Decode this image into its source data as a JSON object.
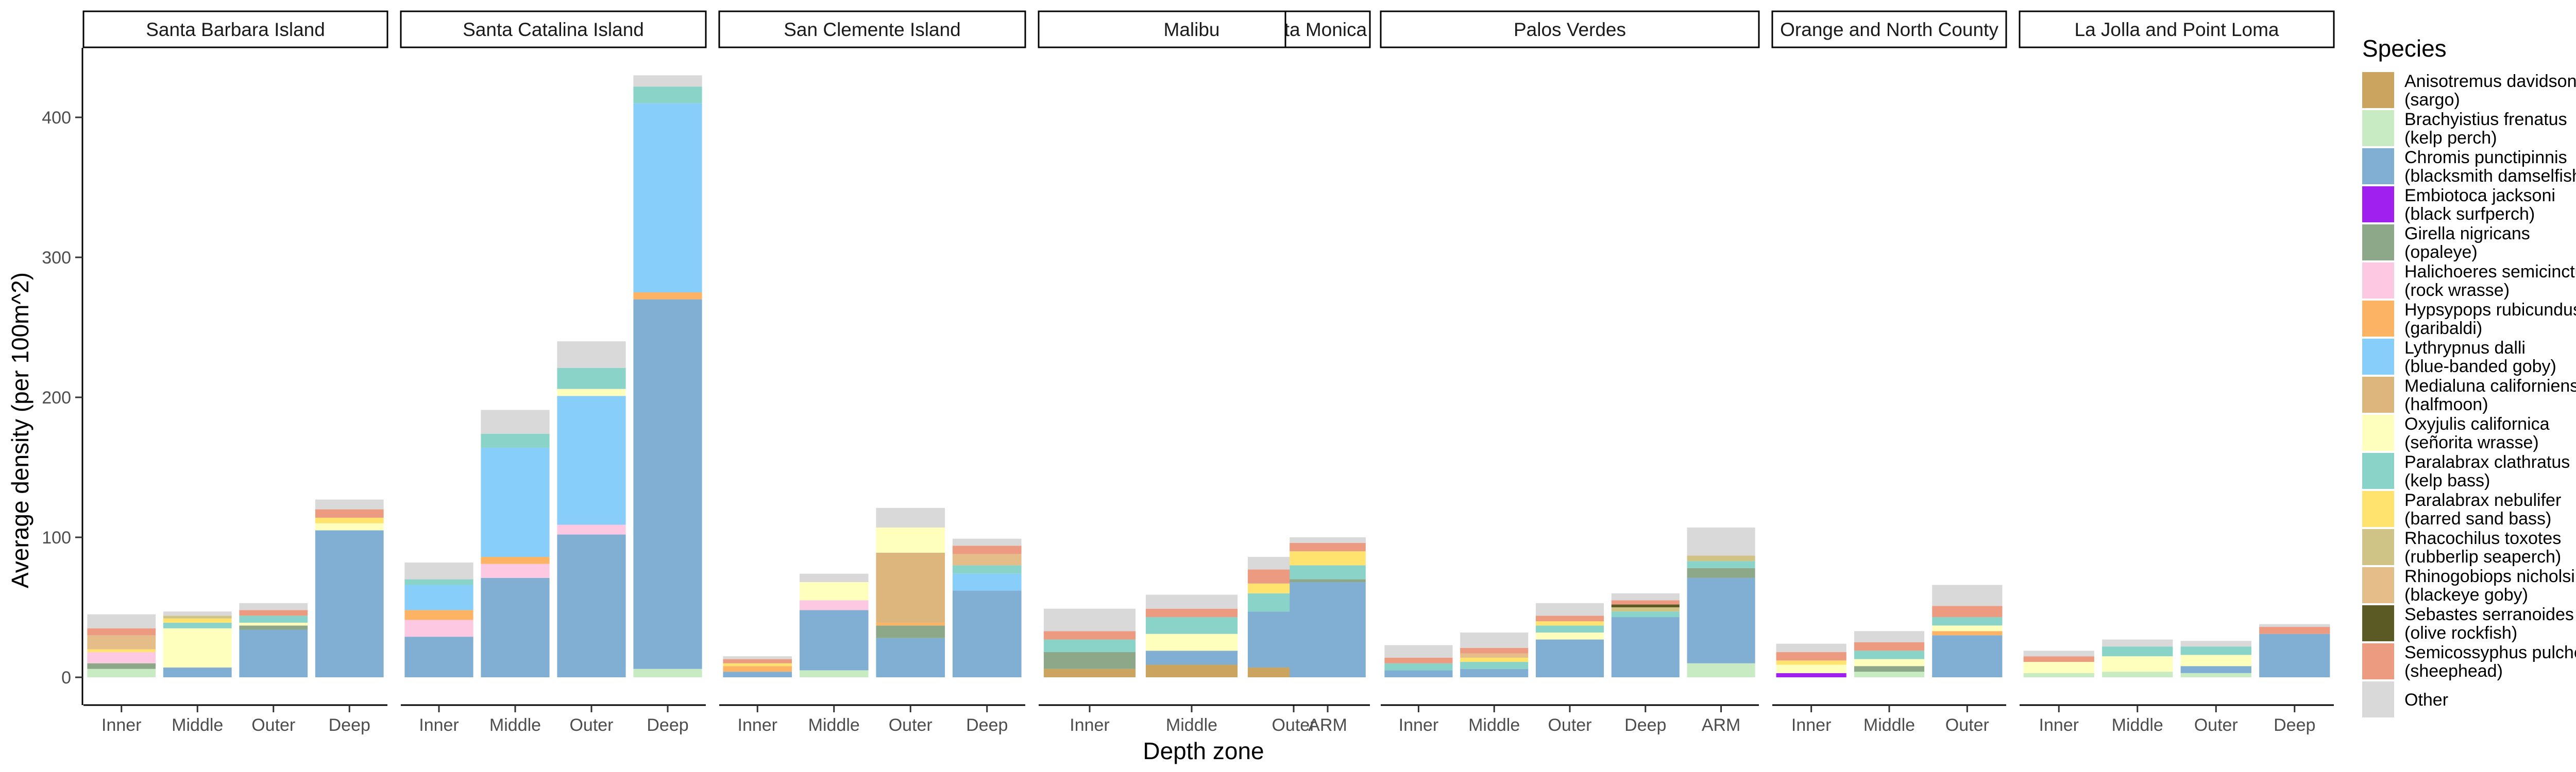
{
  "chart_data": {
    "type": "bar",
    "stacked": true,
    "faceted": true,
    "title": "",
    "xlabel": "Depth zone",
    "ylabel": "Average density (per 100m^2)",
    "ylim": [
      0,
      440
    ],
    "y_ticks": [
      0,
      100,
      200,
      300,
      400
    ],
    "grid": false,
    "legend_position": "right",
    "legend": {
      "title": "Species",
      "items": [
        {
          "key": "sargo",
          "line1": "Anisotremus davidsonii",
          "line2": "(sargo)",
          "color": "#CBA45F"
        },
        {
          "key": "kelpperch",
          "line1": "Brachyistius frenatus",
          "line2": "(kelp perch)",
          "color": "#C8EBC3"
        },
        {
          "key": "blacksmith",
          "line1": "Chromis punctipinnis",
          "line2": "(blacksmith damselfish)",
          "color": "#80AFD3"
        },
        {
          "key": "blacksurf",
          "line1": "Embiotoca jacksoni",
          "line2": "(black surfperch)",
          "color": "#A020F0"
        },
        {
          "key": "opaleye",
          "line1": "Girella nigricans",
          "line2": "(opaleye)",
          "color": "#8DA789"
        },
        {
          "key": "rockwrasse",
          "line1": "Halichoeres semicinctus",
          "line2": "(rock wrasse)",
          "color": "#FCC8E2"
        },
        {
          "key": "garibaldi",
          "line1": "Hypsypops rubicundus",
          "line2": "(garibaldi)",
          "color": "#FDB364"
        },
        {
          "key": "goby",
          "line1": "Lythrypnus dalli",
          "line2": "(blue-banded goby)",
          "color": "#87CEFA"
        },
        {
          "key": "halfmoon",
          "line1": "Medialuna californiensis",
          "line2": "(halfmoon)",
          "color": "#DDB67E"
        },
        {
          "key": "senorita",
          "line1": "Oxyjulis californica",
          "line2": "(señorita wrasse)",
          "color": "#FFFFBD"
        },
        {
          "key": "kelpbass",
          "line1": "Paralabrax clathratus",
          "line2": "(kelp bass)",
          "color": "#8AD3C8"
        },
        {
          "key": "sandbass",
          "line1": "Paralabrax nebulifer",
          "line2": "(barred sand bass)",
          "color": "#FFE36E"
        },
        {
          "key": "seaperch",
          "line1": "Rhacochilus toxotes",
          "line2": "(rubberlip seaperch)",
          "color": "#CFC386"
        },
        {
          "key": "blackeye",
          "line1": "Rhinogobiops nicholsii",
          "line2": "(blackeye goby)",
          "color": "#E4BD89"
        },
        {
          "key": "olive",
          "line1": "Sebastes serranoides",
          "line2": "(olive rockfish)",
          "color": "#5B5924"
        },
        {
          "key": "sheephead",
          "line1": "Semicossyphus pulcher",
          "line2": "(sheephead)",
          "color": "#EC9A80"
        },
        {
          "key": "other",
          "line1": "Other",
          "line2": "",
          "color": "#D9D9D9"
        }
      ]
    },
    "facets": [
      {
        "name": "Santa Barbara Island",
        "bars": [
          {
            "x": "Inner",
            "stack": {
              "other": 10,
              "sheephead": 5,
              "blackeye": 10,
              "rockwrasse": 8,
              "opaleye": 4,
              "sandbass": 2,
              "kelpperch": 6
            }
          },
          {
            "x": "Middle",
            "stack": {
              "other": 3,
              "kelpbass": 4,
              "senorita": 28,
              "sandbass": 3,
              "seaperch": 2,
              "blacksmith": 7
            }
          },
          {
            "x": "Outer",
            "stack": {
              "other": 5,
              "sheephead": 4,
              "kelpbass": 5,
              "opaleye": 3,
              "senorita": 2,
              "blacksmith": 34
            }
          },
          {
            "x": "Deep",
            "stack": {
              "other": 7,
              "sheephead": 6,
              "sandbass": 4,
              "senorita": 5,
              "blacksmith": 105
            }
          }
        ]
      },
      {
        "name": "Santa Catalina Island",
        "bars": [
          {
            "x": "Inner",
            "stack": {
              "other": 12,
              "kelpbass": 4,
              "goby": 18,
              "garibaldi": 7,
              "rockwrasse": 12,
              "blacksmith": 29
            }
          },
          {
            "x": "Middle",
            "stack": {
              "other": 17,
              "kelpbass": 10,
              "goby": 78,
              "garibaldi": 5,
              "rockwrasse": 10,
              "blacksmith": 71
            }
          },
          {
            "x": "Outer",
            "stack": {
              "other": 19,
              "kelpbass": 15,
              "senorita": 5,
              "goby": 92,
              "rockwrasse": 7,
              "blacksmith": 102
            }
          },
          {
            "x": "Deep",
            "stack": {
              "other": 8,
              "kelpbass": 12,
              "garibaldi": 5,
              "goby": 135,
              "blacksmith": 264,
              "kelpperch": 6
            }
          }
        ]
      },
      {
        "name": "San Clemente Island",
        "bars": [
          {
            "x": "Inner",
            "stack": {
              "other": 2,
              "sheephead": 3,
              "garibaldi": 4,
              "sandbass": 2,
              "blacksmith": 4
            }
          },
          {
            "x": "Middle",
            "stack": {
              "other": 6,
              "senorita": 13,
              "rockwrasse": 7,
              "blacksmith": 43,
              "kelpperch": 5
            }
          },
          {
            "x": "Outer",
            "stack": {
              "other": 14,
              "senorita": 18,
              "halfmoon": 50,
              "garibaldi": 2,
              "opaleye": 9,
              "blacksmith": 28
            }
          },
          {
            "x": "Deep",
            "stack": {
              "other": 5,
              "sheephead": 6,
              "kelpbass": 6,
              "blackeye": 8,
              "goby": 12,
              "blacksmith": 62
            }
          }
        ]
      },
      {
        "name": "Malibu",
        "bars": [
          {
            "x": "Inner",
            "stack": {
              "other": 16,
              "sheephead": 6,
              "kelpbass": 9,
              "opaleye": 12,
              "sargo": 6
            }
          },
          {
            "x": "Middle",
            "stack": {
              "other": 10,
              "sheephead": 6,
              "kelpbass": 12,
              "senorita": 12,
              "blacksmith": 10,
              "sargo": 9
            }
          },
          {
            "x": "Outer",
            "stack": {
              "other": 9,
              "sheephead": 10,
              "sandbass": 7,
              "kelpbass": 13,
              "blacksmith": 40,
              "sargo": 7
            }
          }
        ]
      },
      {
        "name": "Santa Monica Bay",
        "bars": [
          {
            "x": "ARM",
            "stack": {
              "other": 4,
              "sheephead": 6,
              "sandbass": 10,
              "kelpbass": 10,
              "opaleye": 2,
              "blacksmith": 68
            }
          }
        ]
      },
      {
        "name": "Palos Verdes",
        "bars": [
          {
            "x": "Inner",
            "stack": {
              "other": 9,
              "sheephead": 4,
              "kelpbass": 5,
              "blacksmith": 5
            }
          },
          {
            "x": "Middle",
            "stack": {
              "other": 11,
              "sheephead": 4,
              "kelpbass": 5,
              "sandbass": 3,
              "blackeye": 3,
              "blacksmith": 6
            }
          },
          {
            "x": "Outer",
            "stack": {
              "other": 9,
              "sheephead": 4,
              "kelpbass": 5,
              "senorita": 5,
              "sandbass": 3,
              "blacksmith": 27
            }
          },
          {
            "x": "Deep",
            "stack": {
              "other": 5,
              "sheephead": 3,
              "olive": 2,
              "seaperch": 3,
              "kelpbass": 4,
              "blacksmith": 43
            }
          },
          {
            "x": "ARM",
            "stack": {
              "other": 20,
              "kelpbass": 5,
              "seaperch": 4,
              "opaleye": 7,
              "blacksmith": 61,
              "kelpperch": 10
            }
          }
        ]
      },
      {
        "name": "Orange and North County",
        "bars": [
          {
            "x": "Inner",
            "stack": {
              "other": 6,
              "senorita": 6,
              "sheephead": 6,
              "sandbass": 3,
              "blacksurf": 3
            }
          },
          {
            "x": "Middle",
            "stack": {
              "other": 8,
              "sheephead": 6,
              "kelpbass": 6,
              "senorita": 5,
              "opaleye": 4,
              "kelpperch": 4
            }
          },
          {
            "x": "Outer",
            "stack": {
              "other": 15,
              "sheephead": 8,
              "kelpbass": 6,
              "senorita": 4,
              "garibaldi": 3,
              "blacksmith": 30
            }
          }
        ]
      },
      {
        "name": "La Jolla and Point Loma",
        "bars": [
          {
            "x": "Inner",
            "stack": {
              "other": 4,
              "senorita": 8,
              "sheephead": 4,
              "kelpperch": 3
            }
          },
          {
            "x": "Middle",
            "stack": {
              "other": 5,
              "kelpbass": 7,
              "senorita": 11,
              "kelpperch": 4
            }
          },
          {
            "x": "Outer",
            "stack": {
              "other": 4,
              "kelpbass": 6,
              "senorita": 8,
              "blacksmith": 5,
              "kelpperch": 3
            }
          },
          {
            "x": "Deep",
            "stack": {
              "other": 2,
              "sheephead": 5,
              "blacksmith": 31
            }
          }
        ]
      }
    ]
  }
}
